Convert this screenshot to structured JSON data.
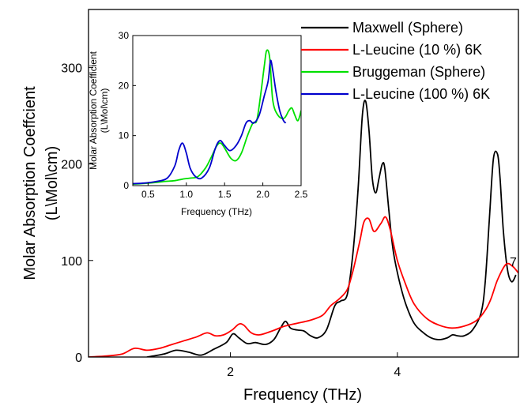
{
  "chart_data": [
    {
      "type": "line",
      "xlabel": "Frequency (THz)",
      "ylabel_line1": "Molar Absorption Coeffcient",
      "ylabel_line2": "(L\\Mol\\cm)",
      "xlim": [
        0.3,
        5.45
      ],
      "ylim": [
        0,
        360
      ],
      "xticks": [
        2,
        4
      ],
      "yticks": [
        0,
        100,
        200,
        300
      ],
      "extra_label": "7",
      "legend_placement": "top-right",
      "grid": false,
      "series": [
        {
          "name": "Maxwell (Sphere)",
          "color": "#000000",
          "points": [
            [
              1.0,
              0
            ],
            [
              1.2,
              3
            ],
            [
              1.35,
              7
            ],
            [
              1.5,
              5
            ],
            [
              1.65,
              2
            ],
            [
              1.8,
              8
            ],
            [
              1.95,
              15
            ],
            [
              2.03,
              24
            ],
            [
              2.1,
              20
            ],
            [
              2.2,
              14
            ],
            [
              2.3,
              15
            ],
            [
              2.42,
              13
            ],
            [
              2.52,
              18
            ],
            [
              2.6,
              30
            ],
            [
              2.66,
              37
            ],
            [
              2.72,
              30
            ],
            [
              2.8,
              28
            ],
            [
              2.88,
              27
            ],
            [
              2.96,
              22
            ],
            [
              3.05,
              20
            ],
            [
              3.15,
              28
            ],
            [
              3.25,
              53
            ],
            [
              3.32,
              58
            ],
            [
              3.4,
              65
            ],
            [
              3.47,
              110
            ],
            [
              3.53,
              175
            ],
            [
              3.58,
              250
            ],
            [
              3.62,
              265
            ],
            [
              3.66,
              235
            ],
            [
              3.7,
              185
            ],
            [
              3.74,
              170
            ],
            [
              3.78,
              185
            ],
            [
              3.82,
              200
            ],
            [
              3.85,
              195
            ],
            [
              3.9,
              150
            ],
            [
              3.95,
              110
            ],
            [
              4.02,
              80
            ],
            [
              4.1,
              55
            ],
            [
              4.2,
              35
            ],
            [
              4.3,
              26
            ],
            [
              4.4,
              20
            ],
            [
              4.5,
              18
            ],
            [
              4.6,
              20
            ],
            [
              4.66,
              23
            ],
            [
              4.72,
              22
            ],
            [
              4.8,
              22
            ],
            [
              4.9,
              28
            ],
            [
              5.0,
              45
            ],
            [
              5.05,
              75
            ],
            [
              5.1,
              140
            ],
            [
              5.15,
              205
            ],
            [
              5.2,
              210
            ],
            [
              5.23,
              185
            ],
            [
              5.27,
              130
            ],
            [
              5.32,
              90
            ],
            [
              5.37,
              78
            ],
            [
              5.42,
              85
            ]
          ]
        },
        {
          "name": "L-Leucine (10 %) 6K",
          "color": "#ff0000",
          "points": [
            [
              0.3,
              0
            ],
            [
              0.5,
              1
            ],
            [
              0.7,
              3
            ],
            [
              0.85,
              9
            ],
            [
              1.0,
              7
            ],
            [
              1.15,
              9
            ],
            [
              1.3,
              13
            ],
            [
              1.45,
              17
            ],
            [
              1.6,
              21
            ],
            [
              1.72,
              25
            ],
            [
              1.82,
              22
            ],
            [
              1.92,
              23
            ],
            [
              2.02,
              28
            ],
            [
              2.1,
              34
            ],
            [
              2.16,
              33
            ],
            [
              2.25,
              25
            ],
            [
              2.35,
              23
            ],
            [
              2.5,
              27
            ],
            [
              2.65,
              32
            ],
            [
              2.8,
              35
            ],
            [
              2.95,
              38
            ],
            [
              3.1,
              43
            ],
            [
              3.2,
              53
            ],
            [
              3.3,
              60
            ],
            [
              3.4,
              70
            ],
            [
              3.47,
              90
            ],
            [
              3.55,
              120
            ],
            [
              3.6,
              140
            ],
            [
              3.66,
              143
            ],
            [
              3.72,
              130
            ],
            [
              3.8,
              138
            ],
            [
              3.86,
              145
            ],
            [
              3.92,
              130
            ],
            [
              4.0,
              100
            ],
            [
              4.1,
              75
            ],
            [
              4.2,
              55
            ],
            [
              4.35,
              40
            ],
            [
              4.5,
              33
            ],
            [
              4.65,
              30
            ],
            [
              4.8,
              32
            ],
            [
              4.95,
              38
            ],
            [
              5.05,
              48
            ],
            [
              5.12,
              60
            ],
            [
              5.2,
              80
            ],
            [
              5.3,
              96
            ],
            [
              5.38,
              94
            ],
            [
              5.45,
              87
            ]
          ]
        }
      ]
    },
    {
      "type": "line",
      "xlabel": "Frequency (THz)",
      "ylabel_line1": "Molar Absorption Coefficient",
      "ylabel_line2": "(L\\Mol\\cm)",
      "xlim": [
        0.3,
        2.5
      ],
      "ylim": [
        0,
        30
      ],
      "xticks": [
        0.5,
        1.0,
        1.5,
        2.0,
        2.5
      ],
      "yticks": [
        0,
        10,
        20,
        30
      ],
      "grid": false,
      "series": [
        {
          "name": "Bruggeman (Sphere)",
          "color": "#00e000",
          "points": [
            [
              0.3,
              0.3
            ],
            [
              0.5,
              0.5
            ],
            [
              0.7,
              0.8
            ],
            [
              0.85,
              1.0
            ],
            [
              0.95,
              1.3
            ],
            [
              1.05,
              1.5
            ],
            [
              1.15,
              1.8
            ],
            [
              1.25,
              3.5
            ],
            [
              1.32,
              5.5
            ],
            [
              1.4,
              8.0
            ],
            [
              1.45,
              8.5
            ],
            [
              1.5,
              7.5
            ],
            [
              1.58,
              5.5
            ],
            [
              1.65,
              5.0
            ],
            [
              1.72,
              6.5
            ],
            [
              1.8,
              10
            ],
            [
              1.87,
              12.5
            ],
            [
              1.92,
              13.0
            ],
            [
              1.97,
              18
            ],
            [
              2.02,
              24
            ],
            [
              2.05,
              27
            ],
            [
              2.09,
              25.5
            ],
            [
              2.13,
              17
            ],
            [
              2.2,
              14
            ],
            [
              2.28,
              13.5
            ],
            [
              2.34,
              15
            ],
            [
              2.38,
              15.5
            ],
            [
              2.42,
              14
            ],
            [
              2.46,
              13
            ],
            [
              2.5,
              15
            ]
          ]
        },
        {
          "name": "L-Leucine (100 %) 6K",
          "color": "#0000cc",
          "points": [
            [
              0.3,
              0.4
            ],
            [
              0.45,
              0.5
            ],
            [
              0.6,
              0.8
            ],
            [
              0.75,
              1.5
            ],
            [
              0.85,
              4.0
            ],
            [
              0.9,
              7.0
            ],
            [
              0.95,
              8.5
            ],
            [
              1.0,
              6.5
            ],
            [
              1.05,
              3.5
            ],
            [
              1.12,
              1.8
            ],
            [
              1.2,
              1.5
            ],
            [
              1.3,
              3.5
            ],
            [
              1.38,
              7.5
            ],
            [
              1.44,
              9.0
            ],
            [
              1.5,
              8.0
            ],
            [
              1.57,
              7.0
            ],
            [
              1.65,
              8.0
            ],
            [
              1.72,
              10
            ],
            [
              1.78,
              12.5
            ],
            [
              1.83,
              13
            ],
            [
              1.88,
              12.5
            ],
            [
              1.95,
              14
            ],
            [
              2.02,
              18
            ],
            [
              2.07,
              21
            ],
            [
              2.1,
              25
            ],
            [
              2.13,
              23
            ],
            [
              2.17,
              19
            ],
            [
              2.22,
              15
            ],
            [
              2.27,
              13
            ],
            [
              2.3,
              12.5
            ]
          ]
        }
      ]
    }
  ]
}
